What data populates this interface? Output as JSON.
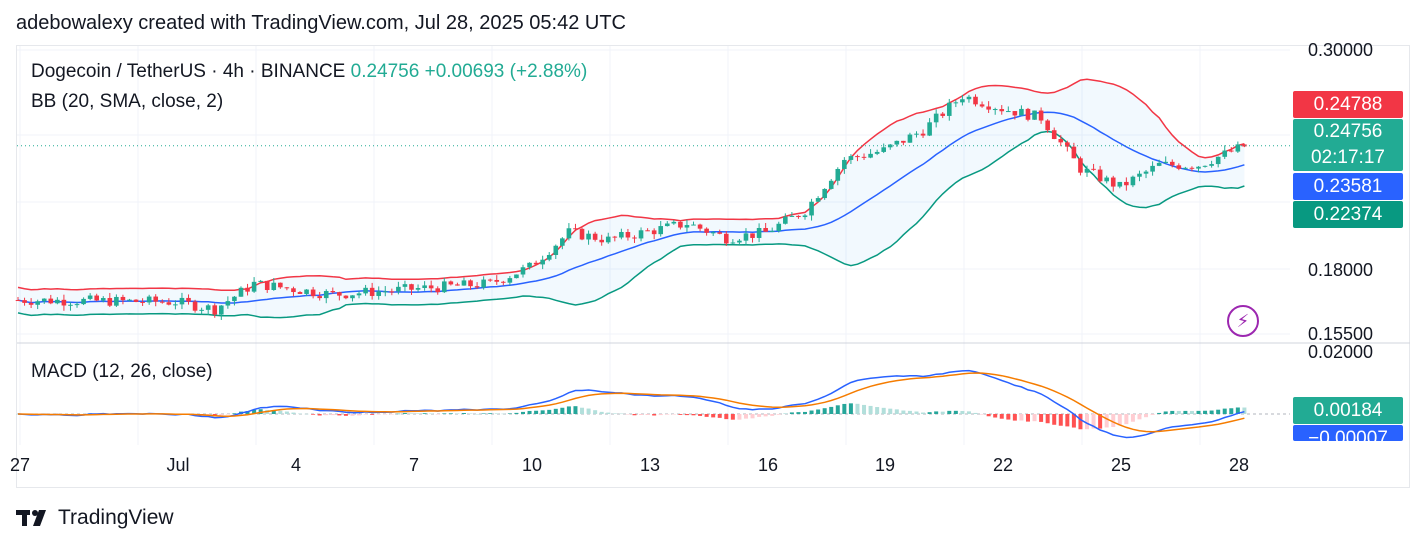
{
  "header": {
    "credit": "adebowalexy created with TradingView.com, Jul 28, 2025 05:42 UTC"
  },
  "legend": {
    "symbol": "Dogecoin / TetherUS · 4h · BINANCE",
    "last": "0.24756",
    "change": "+0.00693 (+2.88%)",
    "bb": "BB (20, SMA, close, 2)",
    "macd": "MACD (12, 26, close)"
  },
  "price_axis": {
    "ticks": [
      "0.30000",
      "0.18000",
      "0.15500"
    ],
    "macd_ticks": [
      "0.02000"
    ]
  },
  "tags": {
    "bb_upper": {
      "text": "0.24788",
      "color": "#f23645"
    },
    "last_price": {
      "text": "0.24756",
      "color": "#22ab94"
    },
    "countdown": {
      "text": "02:17:17",
      "color": "#22ab94"
    },
    "bb_basis": {
      "text": "0.23581",
      "color": "#2962ff"
    },
    "bb_lower": {
      "text": "0.22374",
      "color": "#089981"
    },
    "macd_hist": {
      "text": "0.00184",
      "color": "#22ab94"
    },
    "macd_line": {
      "text": "−0.00007",
      "color": "#2962ff"
    }
  },
  "date_axis": [
    "27",
    "Jul",
    "4",
    "7",
    "10",
    "13",
    "16",
    "19",
    "22",
    "25",
    "28"
  ],
  "footer": {
    "brand": "TradingView",
    "logo": "tradingview-logo"
  },
  "icons": {
    "bolt": "lightning-icon"
  },
  "colors": {
    "up": "#22ab94",
    "down": "#f23645",
    "bb_upper": "#f23645",
    "bb_basis": "#2962ff",
    "bb_lower": "#089981",
    "macd": "#2962ff",
    "signal": "#f57c00"
  },
  "chart_data": {
    "type": "candlestick",
    "title": "Dogecoin / TetherUS · 4h · BINANCE",
    "x_range": [
      "Jun 27",
      "Jul 28"
    ],
    "ylim": [
      0.15,
      0.3
    ],
    "candle_anchor_closes": [
      {
        "date": "Jun 27",
        "close": 0.163
      },
      {
        "date": "Jul 1",
        "close": 0.162
      },
      {
        "date": "Jul 2",
        "close": 0.158
      },
      {
        "date": "Jul 3",
        "close": 0.172
      },
      {
        "date": "Jul 5",
        "close": 0.166
      },
      {
        "date": "Jul 7",
        "close": 0.169
      },
      {
        "date": "Jul 9",
        "close": 0.172
      },
      {
        "date": "Jul 10",
        "close": 0.181
      },
      {
        "date": "Jul 11",
        "close": 0.2
      },
      {
        "date": "Jul 12",
        "close": 0.196
      },
      {
        "date": "Jul 14",
        "close": 0.205
      },
      {
        "date": "Jul 15",
        "close": 0.197
      },
      {
        "date": "Jul 16",
        "close": 0.2
      },
      {
        "date": "Jul 17",
        "close": 0.212
      },
      {
        "date": "Jul 18",
        "close": 0.24
      },
      {
        "date": "Jul 19",
        "close": 0.245
      },
      {
        "date": "Jul 20",
        "close": 0.256
      },
      {
        "date": "Jul 21",
        "close": 0.275
      },
      {
        "date": "Jul 22",
        "close": 0.268
      },
      {
        "date": "Jul 23",
        "close": 0.263
      },
      {
        "date": "Jul 24",
        "close": 0.235
      },
      {
        "date": "Jul 25",
        "close": 0.225
      },
      {
        "date": "Jul 26",
        "close": 0.237
      },
      {
        "date": "Jul 27",
        "close": 0.237
      },
      {
        "date": "Jul 28",
        "close": 0.24756
      }
    ],
    "bollinger": {
      "upper_last": 0.24788,
      "basis_last": 0.23581,
      "lower_last": 0.22374
    },
    "macd": {
      "histogram_last": 0.00184,
      "macd_last": -7e-05,
      "ylim": [
        -0.02,
        0.02
      ]
    }
  }
}
